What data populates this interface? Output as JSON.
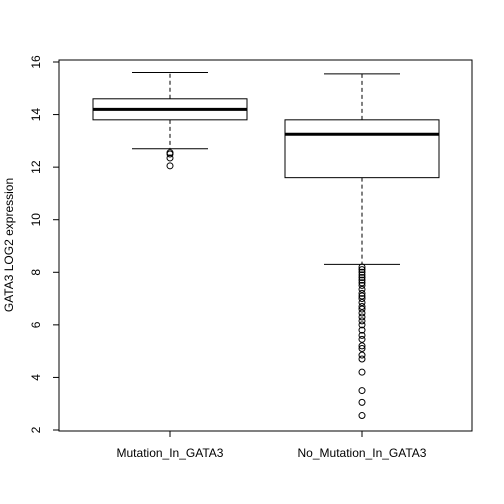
{
  "chart_data": {
    "type": "boxplot",
    "title": "",
    "xlabel": "",
    "ylabel": "GATA3 LOG2 expression",
    "ylim": [
      2,
      16
    ],
    "yticks": [
      2,
      4,
      6,
      8,
      10,
      12,
      14,
      16
    ],
    "grid": false,
    "legend": "none",
    "categories": [
      "Mutation_In_GATA3",
      "No_Mutation_In_GATA3"
    ],
    "boxes": [
      {
        "whisker_low": 12.7,
        "q1": 13.8,
        "median": 14.2,
        "q3": 14.6,
        "whisker_high": 15.6,
        "outliers": [
          12.05,
          12.35,
          12.5,
          12.55
        ]
      },
      {
        "whisker_low": 8.3,
        "q1": 11.6,
        "median": 13.25,
        "q3": 13.8,
        "whisker_high": 15.55,
        "outliers": [
          8.2,
          8.1,
          8.0,
          7.9,
          7.8,
          7.7,
          7.6,
          7.5,
          7.35,
          7.2,
          7.1,
          7.0,
          6.85,
          6.7,
          6.6,
          6.45,
          6.3,
          6.15,
          6.0,
          5.8,
          5.6,
          5.45,
          5.2,
          5.1,
          4.85,
          4.7,
          4.2,
          3.5,
          3.05,
          2.55
        ]
      }
    ]
  }
}
